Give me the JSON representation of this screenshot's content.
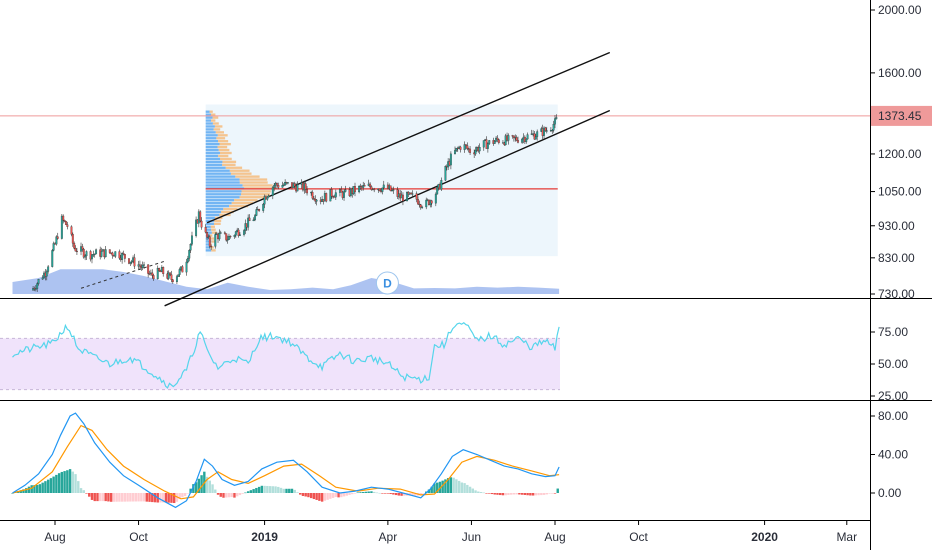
{
  "chart_data": [
    {
      "type": "candlestick",
      "panel": "price",
      "scale": "log",
      "ylim": [
        730,
        2050
      ],
      "y_ticks": [
        "2000.00",
        "1600.00",
        "1200.00",
        "1050.00",
        "930.00",
        "830.00",
        "730.00"
      ],
      "last_price_label": "1373.45",
      "last_price": 1373.45,
      "colors": {
        "up": "#26a69a",
        "down": "#ef5350",
        "price_line": "#ef9a9a",
        "poc_line": "#e53935",
        "volume": "#9fb9ee"
      },
      "close_path": [
        [
          "2018-07-15",
          740
        ],
        [
          "2018-07-25",
          790
        ],
        [
          "2018-08-01",
          870
        ],
        [
          "2018-08-06",
          950
        ],
        [
          "2018-08-10",
          930
        ],
        [
          "2018-08-15",
          860
        ],
        [
          "2018-08-25",
          840
        ],
        [
          "2018-09-05",
          845
        ],
        [
          "2018-09-15",
          845
        ],
        [
          "2018-09-22",
          830
        ],
        [
          "2018-10-01",
          810
        ],
        [
          "2018-10-10",
          780
        ],
        [
          "2018-10-18",
          790
        ],
        [
          "2018-10-25",
          770
        ],
        [
          "2018-11-03",
          800
        ],
        [
          "2018-11-10",
          900
        ],
        [
          "2018-11-14",
          970
        ],
        [
          "2018-11-17",
          920
        ],
        [
          "2018-11-22",
          870
        ],
        [
          "2018-11-27",
          900
        ],
        [
          "2018-12-05",
          890
        ],
        [
          "2018-12-15",
          920
        ],
        [
          "2018-12-25",
          960
        ],
        [
          "2019-01-01",
          1030
        ],
        [
          "2019-01-08",
          1075
        ],
        [
          "2019-01-18",
          1075
        ],
        [
          "2019-01-30",
          1065
        ],
        [
          "2019-02-10",
          1020
        ],
        [
          "2019-02-20",
          1045
        ],
        [
          "2019-03-01",
          1040
        ],
        [
          "2019-03-10",
          1060
        ],
        [
          "2019-03-20",
          1070
        ],
        [
          "2019-04-01",
          1060
        ],
        [
          "2019-04-10",
          1030
        ],
        [
          "2019-04-20",
          1030
        ],
        [
          "2019-04-28",
          1000
        ],
        [
          "2019-05-03",
          1025
        ],
        [
          "2019-05-08",
          1060
        ],
        [
          "2019-05-12",
          1120
        ],
        [
          "2019-05-18",
          1195
        ],
        [
          "2019-05-25",
          1240
        ],
        [
          "2019-06-01",
          1210
        ],
        [
          "2019-06-10",
          1240
        ],
        [
          "2019-06-20",
          1260
        ],
        [
          "2019-06-30",
          1260
        ],
        [
          "2019-07-10",
          1275
        ],
        [
          "2019-07-20",
          1290
        ],
        [
          "2019-07-27",
          1310
        ],
        [
          "2019-08-01",
          1340
        ],
        [
          "2019-08-04",
          1373.45
        ]
      ],
      "channel": {
        "upper": [
          [
            "2018-11-20",
            940
          ],
          [
            "2019-09-10",
            1720
          ]
        ],
        "lower": [
          [
            "2018-10-20",
            700
          ],
          [
            "2019-09-10",
            1400
          ]
        ]
      },
      "volume_profile": {
        "start": "2018-11-19",
        "end": "2019-08-03",
        "high": 1430,
        "low": 835,
        "poc": 1060,
        "poc_label": ""
      },
      "price_line": 1373.45,
      "markers": [
        {
          "date": "2019-03-20",
          "label": "D"
        }
      ],
      "volume_area": [
        [
          "2018-07-01",
          0.3
        ],
        [
          "2018-07-20",
          0.4
        ],
        [
          "2018-08-05",
          0.62
        ],
        [
          "2018-08-20",
          0.62
        ],
        [
          "2018-09-05",
          0.62
        ],
        [
          "2018-09-20",
          0.55
        ],
        [
          "2018-10-05",
          0.45
        ],
        [
          "2018-10-20",
          0.32
        ],
        [
          "2018-11-05",
          0.18
        ],
        [
          "2018-11-20",
          0.12
        ],
        [
          "2018-12-05",
          0.28
        ],
        [
          "2018-12-20",
          0.18
        ],
        [
          "2019-01-05",
          0.1
        ],
        [
          "2019-01-20",
          0.12
        ],
        [
          "2019-02-05",
          0.16
        ],
        [
          "2019-02-20",
          0.12
        ],
        [
          "2019-03-05",
          0.22
        ],
        [
          "2019-03-20",
          0.4
        ],
        [
          "2019-04-05",
          0.3
        ],
        [
          "2019-04-20",
          0.14
        ],
        [
          "2019-05-05",
          0.15
        ],
        [
          "2019-05-20",
          0.14
        ],
        [
          "2019-06-05",
          0.18
        ],
        [
          "2019-06-20",
          0.16
        ],
        [
          "2019-07-05",
          0.18
        ],
        [
          "2019-07-20",
          0.16
        ],
        [
          "2019-08-04",
          0.13
        ]
      ]
    },
    {
      "type": "line",
      "panel": "rsi",
      "ylim": [
        25,
        85
      ],
      "y_ticks": [
        "75.00",
        "50.00",
        "25.00"
      ],
      "band": [
        30,
        70
      ],
      "colors": {
        "line": "#55d5eb",
        "band": "#f0e3fb"
      },
      "points": [
        [
          "2018-07-01",
          58
        ],
        [
          "2018-07-15",
          62
        ],
        [
          "2018-07-30",
          66
        ],
        [
          "2018-08-10",
          80
        ],
        [
          "2018-08-18",
          62
        ],
        [
          "2018-08-30",
          55
        ],
        [
          "2018-09-10",
          50
        ],
        [
          "2018-09-25",
          55
        ],
        [
          "2018-10-05",
          48
        ],
        [
          "2018-10-15",
          40
        ],
        [
          "2018-10-25",
          32
        ],
        [
          "2018-11-05",
          45
        ],
        [
          "2018-11-15",
          75
        ],
        [
          "2018-11-20",
          60
        ],
        [
          "2018-11-28",
          47
        ],
        [
          "2018-12-10",
          55
        ],
        [
          "2018-12-20",
          50
        ],
        [
          "2018-12-28",
          70
        ],
        [
          "2019-01-08",
          72
        ],
        [
          "2019-01-20",
          67
        ],
        [
          "2019-02-01",
          55
        ],
        [
          "2019-02-12",
          48
        ],
        [
          "2019-02-25",
          58
        ],
        [
          "2019-03-08",
          52
        ],
        [
          "2019-03-20",
          55
        ],
        [
          "2019-04-01",
          50
        ],
        [
          "2019-04-12",
          40
        ],
        [
          "2019-04-25",
          38
        ],
        [
          "2019-05-01",
          40
        ],
        [
          "2019-05-05",
          64
        ],
        [
          "2019-05-12",
          65
        ],
        [
          "2019-05-20",
          82
        ],
        [
          "2019-05-28",
          80
        ],
        [
          "2019-06-05",
          68
        ],
        [
          "2019-06-15",
          72
        ],
        [
          "2019-06-25",
          65
        ],
        [
          "2019-07-05",
          70
        ],
        [
          "2019-07-15",
          63
        ],
        [
          "2019-07-25",
          68
        ],
        [
          "2019-08-01",
          62
        ],
        [
          "2019-08-04",
          79
        ]
      ]
    },
    {
      "type": "line",
      "panel": "macd",
      "ylim": [
        -18,
        88
      ],
      "y_ticks": [
        "80.00",
        "40.00",
        "0.00"
      ],
      "colors": {
        "macd": "#2196f3",
        "signal": "#ff9800",
        "hist_up": "#26a69a",
        "hist_up_fade": "#b2dfdb",
        "hist_down": "#ef5350",
        "hist_down_fade": "#ffcdd2"
      },
      "macd": [
        [
          "2018-07-01",
          0
        ],
        [
          "2018-07-10",
          8
        ],
        [
          "2018-07-20",
          20
        ],
        [
          "2018-07-30",
          40
        ],
        [
          "2018-08-05",
          60
        ],
        [
          "2018-08-12",
          80
        ],
        [
          "2018-08-16",
          83
        ],
        [
          "2018-08-22",
          72
        ],
        [
          "2018-08-30",
          52
        ],
        [
          "2018-09-10",
          32
        ],
        [
          "2018-09-20",
          18
        ],
        [
          "2018-10-01",
          8
        ],
        [
          "2018-10-15",
          -5
        ],
        [
          "2018-10-28",
          -15
        ],
        [
          "2018-11-05",
          -8
        ],
        [
          "2018-11-12",
          12
        ],
        [
          "2018-11-18",
          35
        ],
        [
          "2018-11-24",
          28
        ],
        [
          "2018-12-01",
          14
        ],
        [
          "2018-12-10",
          8
        ],
        [
          "2018-12-20",
          12
        ],
        [
          "2018-12-30",
          25
        ],
        [
          "2019-01-10",
          32
        ],
        [
          "2019-01-22",
          34
        ],
        [
          "2019-02-01",
          22
        ],
        [
          "2019-02-12",
          6
        ],
        [
          "2019-02-25",
          0
        ],
        [
          "2019-03-08",
          2
        ],
        [
          "2019-03-20",
          6
        ],
        [
          "2019-04-01",
          4
        ],
        [
          "2019-04-12",
          0
        ],
        [
          "2019-04-25",
          -5
        ],
        [
          "2019-05-02",
          4
        ],
        [
          "2019-05-10",
          20
        ],
        [
          "2019-05-18",
          38
        ],
        [
          "2019-05-26",
          45
        ],
        [
          "2019-06-05",
          40
        ],
        [
          "2019-06-15",
          34
        ],
        [
          "2019-06-25",
          28
        ],
        [
          "2019-07-05",
          25
        ],
        [
          "2019-07-15",
          20
        ],
        [
          "2019-07-25",
          17
        ],
        [
          "2019-08-01",
          18
        ],
        [
          "2019-08-04",
          27
        ]
      ],
      "signal": [
        [
          "2018-07-01",
          0
        ],
        [
          "2018-07-15",
          5
        ],
        [
          "2018-07-30",
          22
        ],
        [
          "2018-08-10",
          48
        ],
        [
          "2018-08-20",
          70
        ],
        [
          "2018-08-28",
          65
        ],
        [
          "2018-09-08",
          45
        ],
        [
          "2018-09-20",
          28
        ],
        [
          "2018-10-05",
          14
        ],
        [
          "2018-10-20",
          2
        ],
        [
          "2018-11-01",
          -6
        ],
        [
          "2018-11-10",
          -4
        ],
        [
          "2018-11-20",
          14
        ],
        [
          "2018-11-28",
          22
        ],
        [
          "2018-12-08",
          14
        ],
        [
          "2018-12-20",
          10
        ],
        [
          "2019-01-01",
          18
        ],
        [
          "2019-01-15",
          28
        ],
        [
          "2019-01-28",
          30
        ],
        [
          "2019-02-10",
          18
        ],
        [
          "2019-02-22",
          6
        ],
        [
          "2019-03-10",
          2
        ],
        [
          "2019-03-25",
          5
        ],
        [
          "2019-04-10",
          4
        ],
        [
          "2019-04-25",
          -2
        ],
        [
          "2019-05-05",
          -1
        ],
        [
          "2019-05-15",
          14
        ],
        [
          "2019-05-25",
          32
        ],
        [
          "2019-06-05",
          38
        ],
        [
          "2019-06-18",
          34
        ],
        [
          "2019-07-01",
          28
        ],
        [
          "2019-07-15",
          23
        ],
        [
          "2019-07-28",
          18
        ],
        [
          "2019-08-04",
          19
        ]
      ]
    }
  ],
  "x_axis_labels": [
    {
      "label": "Aug",
      "date": "2018-08-01",
      "bold": false
    },
    {
      "label": "Oct",
      "date": "2018-10-01",
      "bold": false
    },
    {
      "label": "2019",
      "date": "2019-01-01",
      "bold": true
    },
    {
      "label": "Apr",
      "date": "2019-04-01",
      "bold": false
    },
    {
      "label": "Jun",
      "date": "2019-06-01",
      "bold": false
    },
    {
      "label": "Aug",
      "date": "2019-08-01",
      "bold": false
    },
    {
      "label": "Oct",
      "date": "2019-10-01",
      "bold": false
    },
    {
      "label": "2020",
      "date": "2020-01-01",
      "bold": true
    },
    {
      "label": "Mar",
      "date": "2020-03-01",
      "bold": false
    }
  ]
}
